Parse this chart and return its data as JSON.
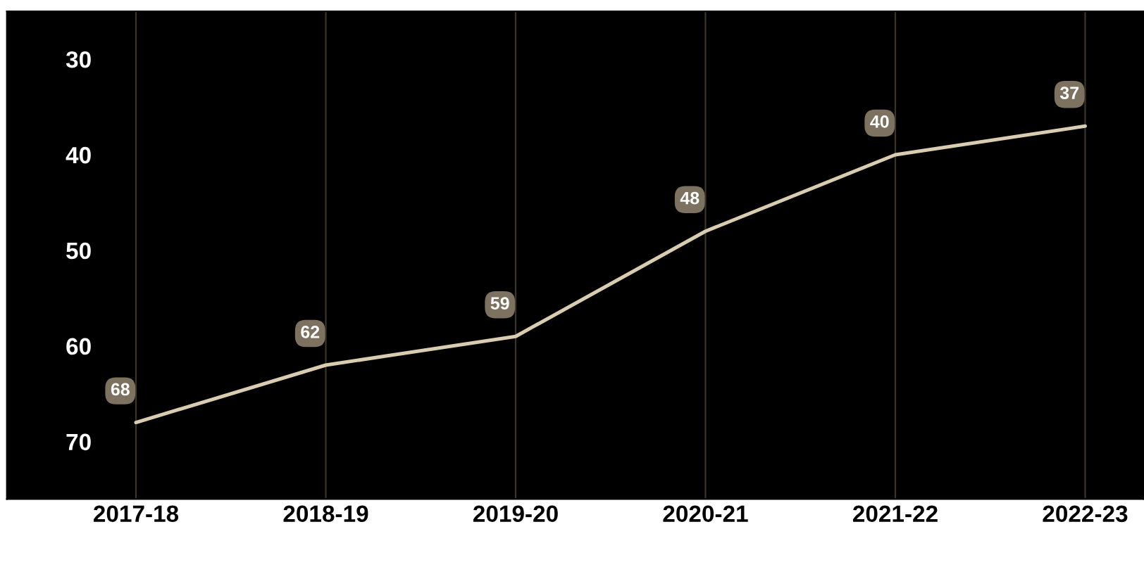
{
  "chart_data": {
    "type": "line",
    "categories": [
      "2017-18",
      "2018-19",
      "2019-20",
      "2020-21",
      "2021-22",
      "2022-23"
    ],
    "series": [
      {
        "color": "#d9ccb0",
        "values": [
          68,
          62,
          59,
          48,
          40,
          37
        ]
      }
    ],
    "ylim": [
      76,
      25
    ],
    "yticks": [
      30,
      40,
      50,
      60,
      70
    ],
    "data_labels": true,
    "grid": "x",
    "marker": "none",
    "line_style": "solid",
    "legend": false
  }
}
